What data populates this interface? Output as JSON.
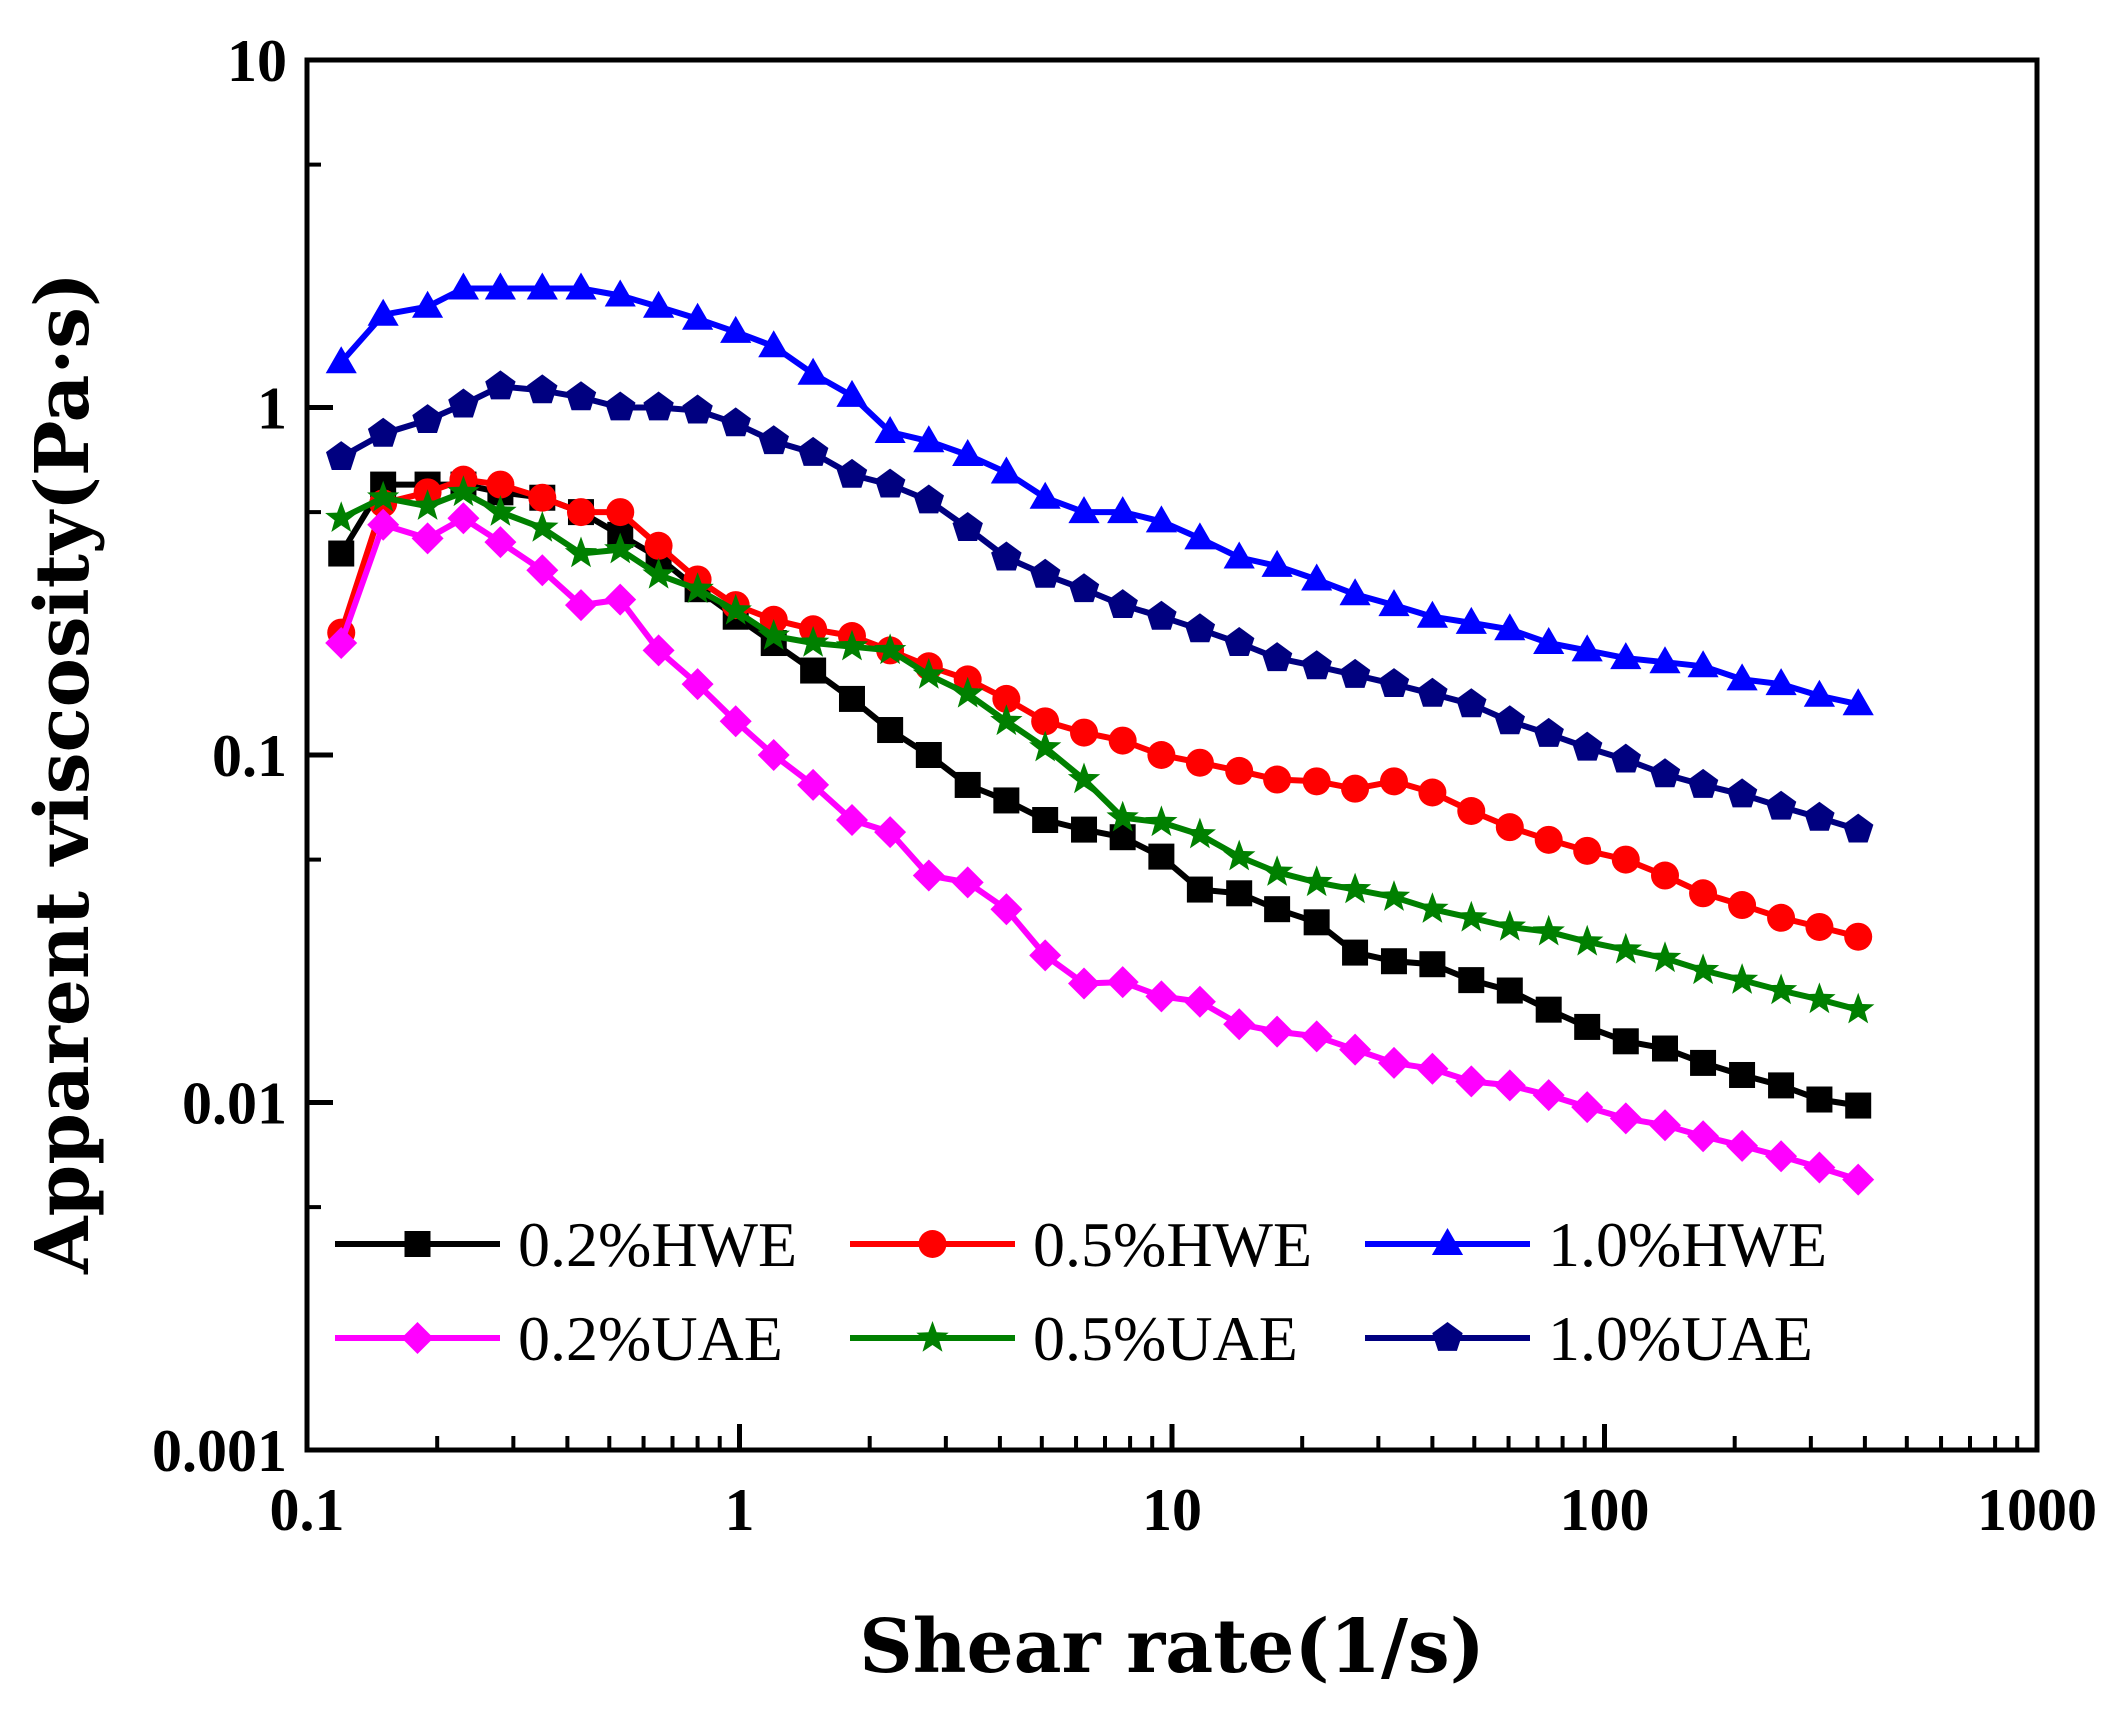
{
  "chart_data": {
    "type": "line",
    "title": "",
    "xlabel": "Shear rate(1/s)",
    "ylabel": "Apparent viscosity(Pa·s)",
    "xscale": "log",
    "yscale": "log",
    "xlim": [
      0.1,
      1000
    ],
    "ylim": [
      0.001,
      10
    ],
    "grid": false,
    "legend_position": "bottom-left",
    "xticks": [
      {
        "value": 0.1,
        "label": "0.1"
      },
      {
        "value": 1,
        "label": "1"
      },
      {
        "value": 10,
        "label": "10"
      },
      {
        "value": 100,
        "label": "100"
      },
      {
        "value": 1000,
        "label": "1000"
      }
    ],
    "yticks": [
      {
        "value": 0.001,
        "label": "0.001"
      },
      {
        "value": 0.01,
        "label": "0.01"
      },
      {
        "value": 0.1,
        "label": "0.1"
      },
      {
        "value": 1,
        "label": "1"
      },
      {
        "value": 10,
        "label": "10"
      }
    ],
    "x": [
      0.12,
      0.15,
      0.19,
      0.23,
      0.28,
      0.35,
      0.43,
      0.53,
      0.65,
      0.8,
      0.98,
      1.2,
      1.48,
      1.82,
      2.23,
      2.74,
      3.37,
      4.14,
      5.09,
      6.26,
      7.69,
      9.45,
      11.6,
      14.3,
      17.5,
      21.6,
      26.5,
      32.6,
      40,
      49.2,
      60.4,
      74.3,
      91.2,
      112,
      138,
      169,
      208,
      256,
      314,
      386
    ],
    "series": [
      {
        "name": "0.2%HWE",
        "color": "#000000",
        "marker": "square",
        "values": [
          0.38,
          0.6,
          0.6,
          0.6,
          0.57,
          0.55,
          0.5,
          0.43,
          0.37,
          0.3,
          0.25,
          0.21,
          0.175,
          0.145,
          0.118,
          0.1,
          0.082,
          0.074,
          0.065,
          0.061,
          0.058,
          0.051,
          0.041,
          0.04,
          0.036,
          0.033,
          0.027,
          0.0255,
          0.025,
          0.0225,
          0.021,
          0.0185,
          0.0165,
          0.015,
          0.0143,
          0.013,
          0.012,
          0.0112,
          0.0102,
          0.0098
        ]
      },
      {
        "name": "0.5%HWE",
        "color": "#ff0000",
        "marker": "circle",
        "values": [
          0.225,
          0.53,
          0.57,
          0.62,
          0.6,
          0.55,
          0.5,
          0.5,
          0.4,
          0.32,
          0.27,
          0.245,
          0.23,
          0.22,
          0.2,
          0.18,
          0.165,
          0.145,
          0.125,
          0.116,
          0.11,
          0.1,
          0.095,
          0.09,
          0.085,
          0.084,
          0.08,
          0.084,
          0.078,
          0.069,
          0.062,
          0.057,
          0.053,
          0.05,
          0.045,
          0.04,
          0.037,
          0.034,
          0.032,
          0.03
        ]
      },
      {
        "name": "1.0%HWE",
        "color": "#0000ff",
        "marker": "triangle",
        "values": [
          1.35,
          1.85,
          1.95,
          2.2,
          2.2,
          2.2,
          2.2,
          2.1,
          1.95,
          1.8,
          1.65,
          1.5,
          1.25,
          1.08,
          0.85,
          0.8,
          0.73,
          0.65,
          0.55,
          0.5,
          0.5,
          0.47,
          0.42,
          0.37,
          0.35,
          0.32,
          0.29,
          0.27,
          0.25,
          0.24,
          0.23,
          0.21,
          0.2,
          0.19,
          0.185,
          0.18,
          0.165,
          0.16,
          0.148,
          0.14
        ]
      },
      {
        "name": "0.2%UAE",
        "color": "#ff00ff",
        "marker": "diamond",
        "values": [
          0.21,
          0.46,
          0.42,
          0.48,
          0.41,
          0.34,
          0.27,
          0.28,
          0.2,
          0.16,
          0.125,
          0.1,
          0.082,
          0.065,
          0.06,
          0.045,
          0.043,
          0.036,
          0.0265,
          0.022,
          0.0222,
          0.0202,
          0.0195,
          0.0168,
          0.016,
          0.0155,
          0.0142,
          0.013,
          0.0125,
          0.0115,
          0.0112,
          0.0105,
          0.0097,
          0.009,
          0.0086,
          0.008,
          0.0075,
          0.007,
          0.0065,
          0.006
        ]
      },
      {
        "name": "0.5%UAE",
        "color": "#008000",
        "marker": "star",
        "values": [
          0.48,
          0.55,
          0.52,
          0.57,
          0.5,
          0.45,
          0.38,
          0.39,
          0.33,
          0.3,
          0.26,
          0.22,
          0.21,
          0.205,
          0.2,
          0.17,
          0.15,
          0.125,
          0.105,
          0.085,
          0.066,
          0.064,
          0.059,
          0.051,
          0.046,
          0.043,
          0.041,
          0.039,
          0.036,
          0.034,
          0.032,
          0.031,
          0.029,
          0.0275,
          0.026,
          0.024,
          0.0225,
          0.021,
          0.0198,
          0.0185
        ]
      },
      {
        "name": "1.0%UAE",
        "color": "#000080",
        "marker": "pentagon",
        "values": [
          0.72,
          0.84,
          0.92,
          1.02,
          1.15,
          1.12,
          1.07,
          1.0,
          1.0,
          0.98,
          0.9,
          0.8,
          0.74,
          0.64,
          0.6,
          0.54,
          0.45,
          0.37,
          0.33,
          0.3,
          0.27,
          0.25,
          0.23,
          0.21,
          0.19,
          0.18,
          0.17,
          0.16,
          0.15,
          0.14,
          0.125,
          0.115,
          0.105,
          0.097,
          0.088,
          0.082,
          0.077,
          0.071,
          0.066,
          0.061
        ]
      }
    ]
  }
}
